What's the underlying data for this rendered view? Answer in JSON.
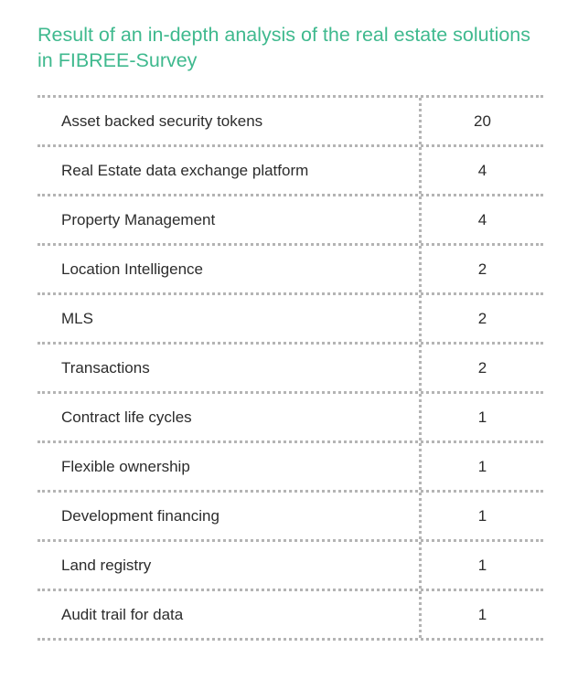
{
  "title": "Result of an in-depth analysis of the real estate solu­tions in FIBREE-Survey",
  "rows": [
    {
      "label": "Asset backed security tokens",
      "value": "20"
    },
    {
      "label": "Real Estate data exchange platform",
      "value": "4"
    },
    {
      "label": "Property Management",
      "value": "4"
    },
    {
      "label": "Location Intelligence",
      "value": "2"
    },
    {
      "label": "MLS",
      "value": "2"
    },
    {
      "label": "Transactions",
      "value": "2"
    },
    {
      "label": "Contract life cycles",
      "value": "1"
    },
    {
      "label": "Flexible ownership",
      "value": "1"
    },
    {
      "label": "Development financing",
      "value": "1"
    },
    {
      "label": "Land registry",
      "value": "1"
    },
    {
      "label": "Audit trail for data",
      "value": "1"
    }
  ],
  "colors": {
    "title": "#3fb98e",
    "text": "#2c2c2c",
    "rule": "#b4b4b4"
  }
}
